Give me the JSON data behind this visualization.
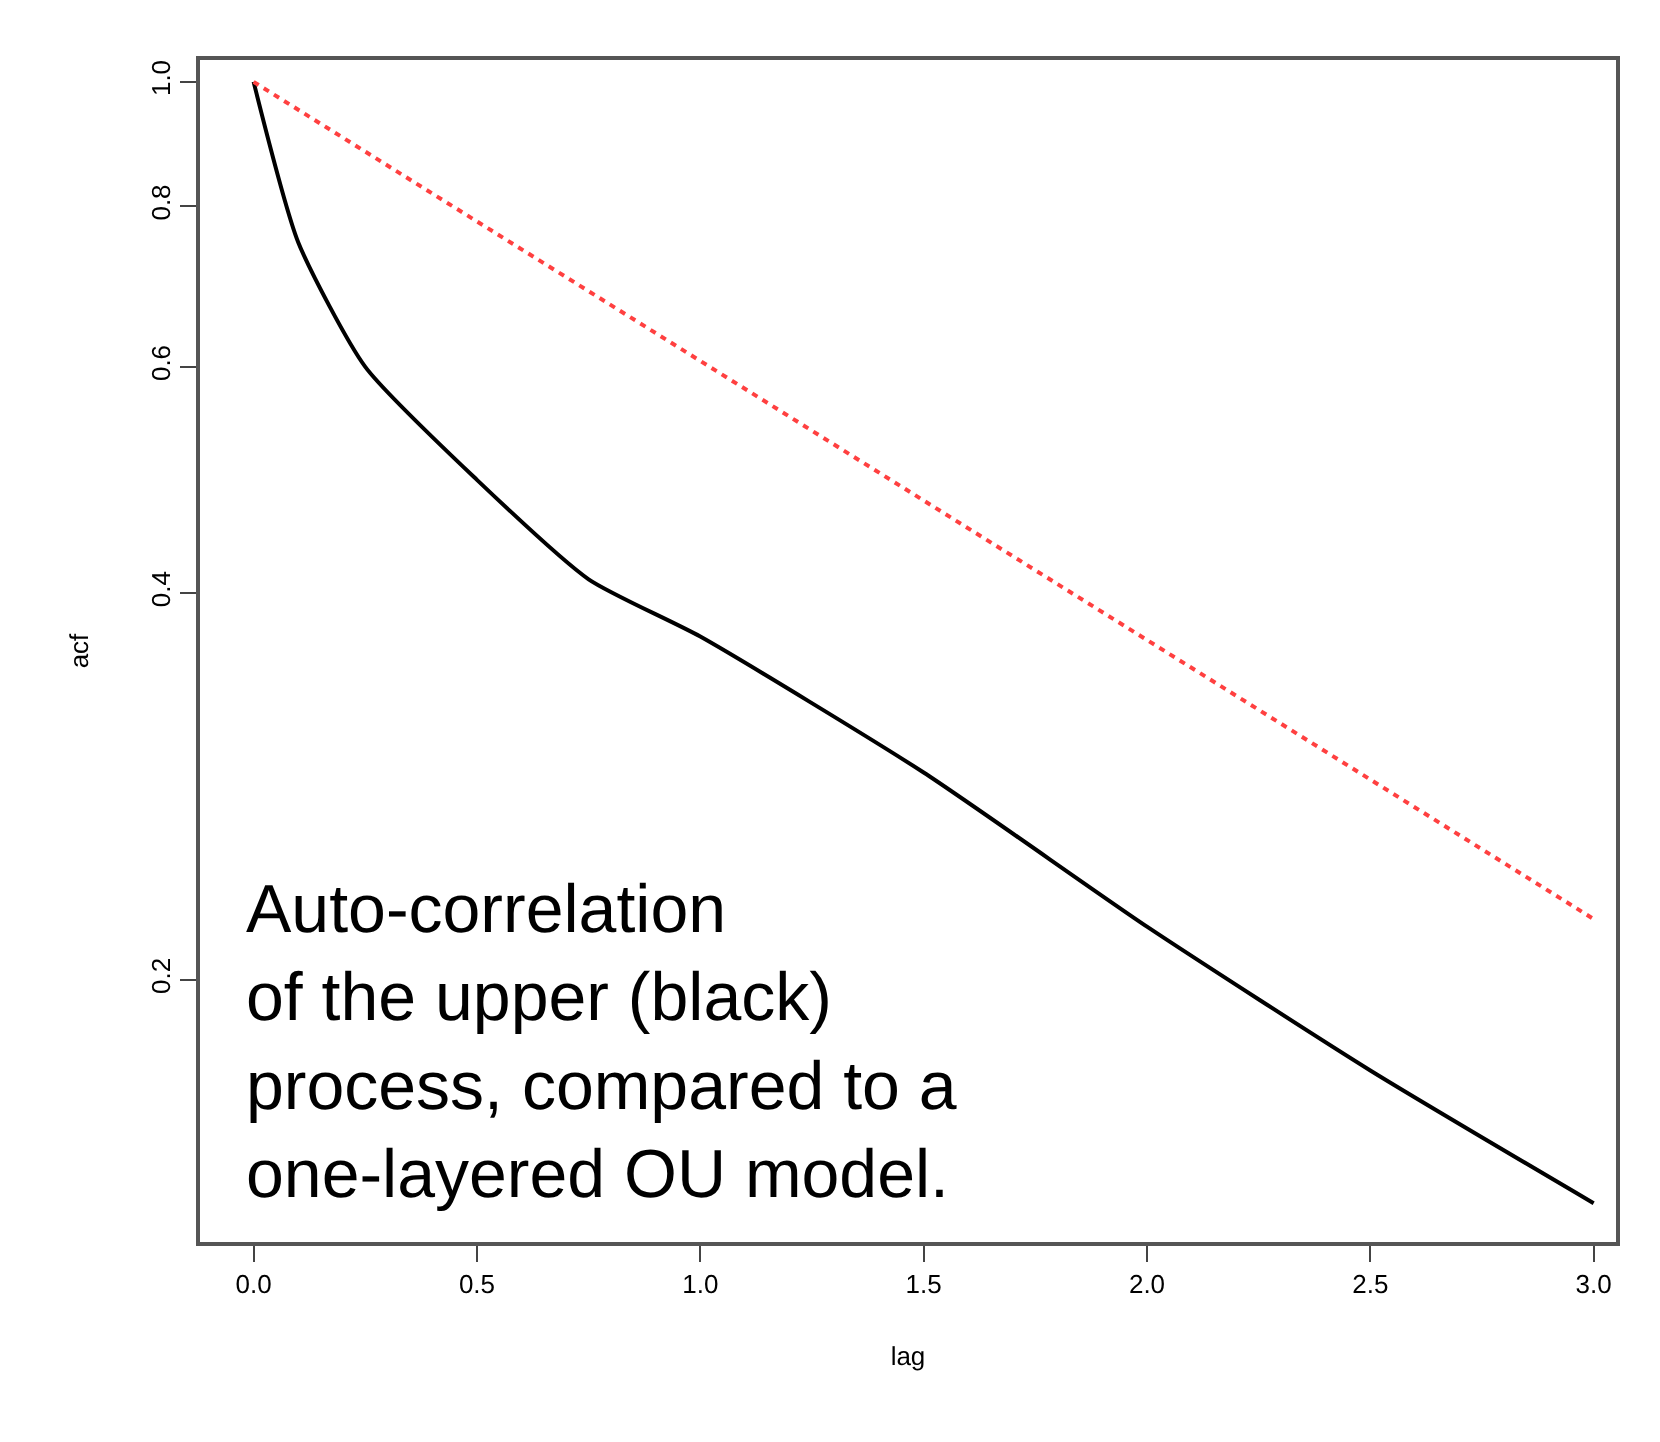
{
  "chart_data": {
    "type": "line",
    "xlabel": "lag",
    "ylabel": "acf",
    "log": "y",
    "xlim": [
      -0.12,
      3.05
    ],
    "xticks": [
      {
        "value": 0,
        "label": "0.0"
      },
      0.5,
      {
        "value": 1,
        "label": "1.0"
      },
      1.5,
      {
        "value": 2,
        "label": "2.0"
      },
      2.5,
      {
        "value": 3,
        "label": "3.0"
      }
    ],
    "ylim": [
      0.125,
      1.04
    ],
    "yticks": [
      0.2,
      0.4,
      0.6,
      0.8,
      {
        "value": 1,
        "label": "1.0"
      }
    ],
    "series": [
      {
        "color": "#000000",
        "line_style": "solid",
        "x": [
          0,
          0.1,
          0.25,
          0.5,
          0.75,
          1.0,
          1.5,
          2.0,
          2.5,
          3.0
        ],
        "values": [
          1.0,
          0.75,
          0.6,
          0.49,
          0.41,
          0.37,
          0.29,
          0.22,
          0.17,
          0.134
        ]
      },
      {
        "color": "#ff4040",
        "line_style": "dotted",
        "x": [
          0,
          3.0
        ],
        "values": [
          1.0,
          0.223
        ]
      }
    ],
    "annotations": [
      "Auto-correlation\nof the upper (black)\nprocess, compared to a\none-layered OU model."
    ],
    "marker": "none"
  }
}
